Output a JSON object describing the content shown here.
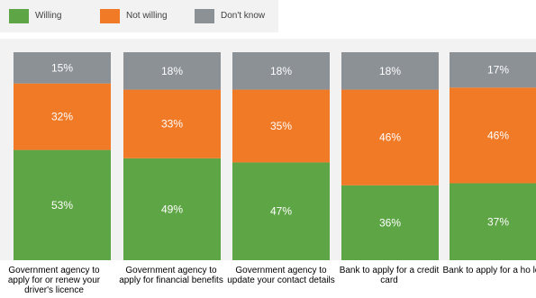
{
  "colors": {
    "willing": "#5ea545",
    "not_willing": "#f07a26",
    "dont_know": "#8c9196",
    "panel_bg": "#f2f2f2"
  },
  "legend": [
    {
      "label": "Willing",
      "color": "#5ea545"
    },
    {
      "label": "Not willing",
      "color": "#f07a26"
    },
    {
      "label": "Don't know",
      "color": "#8c9196"
    }
  ],
  "chart_data": {
    "type": "bar",
    "stacked": true,
    "normalized": true,
    "categories": [
      "Government agency to apply for or renew your driver's licence",
      "Government agency to apply for financial benefits",
      "Government agency to update your contact details",
      "Bank to apply for a credit card",
      "Bank to apply for a ho loan"
    ],
    "series": [
      {
        "name": "Willing",
        "values": [
          53,
          49,
          47,
          36,
          37
        ],
        "labels": [
          "53%",
          "49%",
          "47%",
          "36%",
          "37%"
        ]
      },
      {
        "name": "Not willing",
        "values": [
          32,
          33,
          35,
          46,
          46
        ],
        "labels": [
          "32%",
          "33%",
          "35%",
          "46%",
          "46%"
        ]
      },
      {
        "name": "Don't know",
        "values": [
          15,
          18,
          18,
          18,
          17
        ],
        "labels": [
          "15%",
          "18%",
          "18%",
          "18%",
          "17%"
        ]
      }
    ],
    "ylim": [
      0,
      100
    ],
    "legend_position": "top-left",
    "grid": false
  }
}
